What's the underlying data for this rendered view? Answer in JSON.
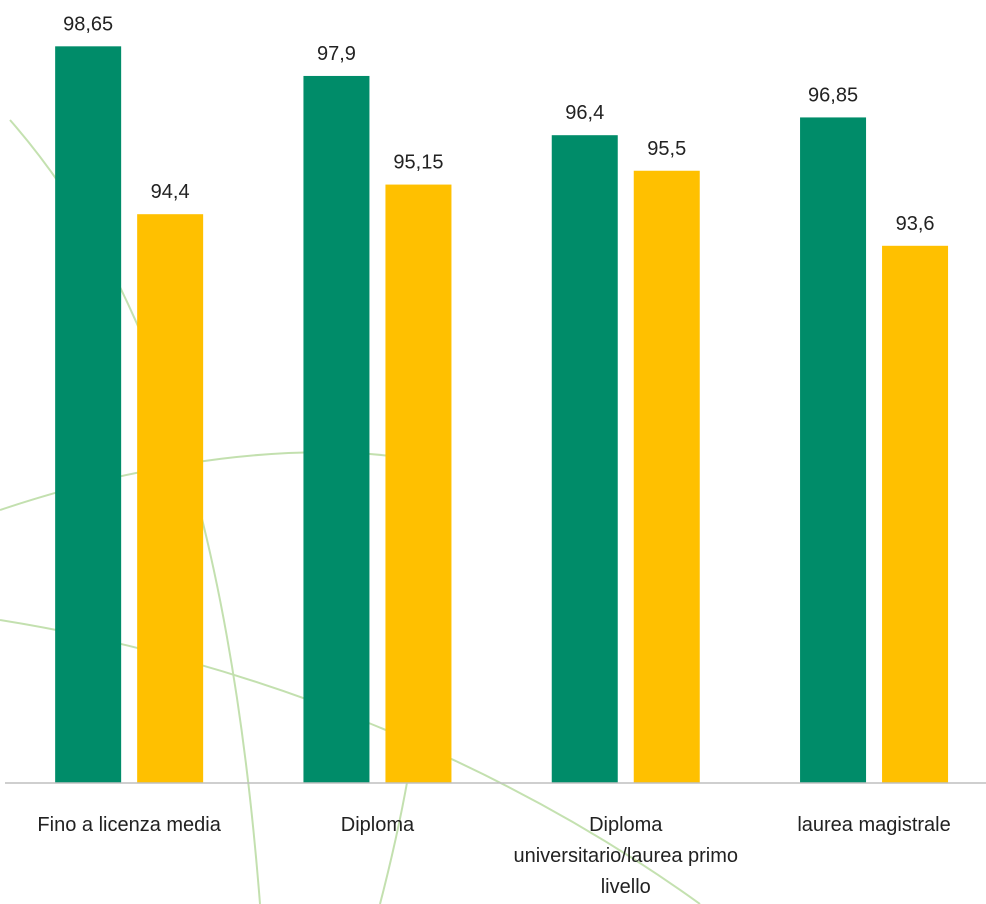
{
  "chart_data": {
    "type": "bar",
    "categories": [
      "Fino a licenza media",
      "Diploma",
      "Diploma universitario/laurea primo livello",
      "laurea magistrale"
    ],
    "series": [
      {
        "color": "#008c69",
        "values": [
          98.65,
          97.9,
          96.4,
          96.85
        ],
        "value_labels": [
          "98,65",
          "97,9",
          "96,4",
          "96,85"
        ]
      },
      {
        "color": "#ffc000",
        "values": [
          94.4,
          95.15,
          95.5,
          93.6
        ],
        "value_labels": [
          "94,4",
          "95,15",
          "95,5",
          "93,6"
        ]
      }
    ],
    "ylim": [
      80,
      100
    ]
  }
}
